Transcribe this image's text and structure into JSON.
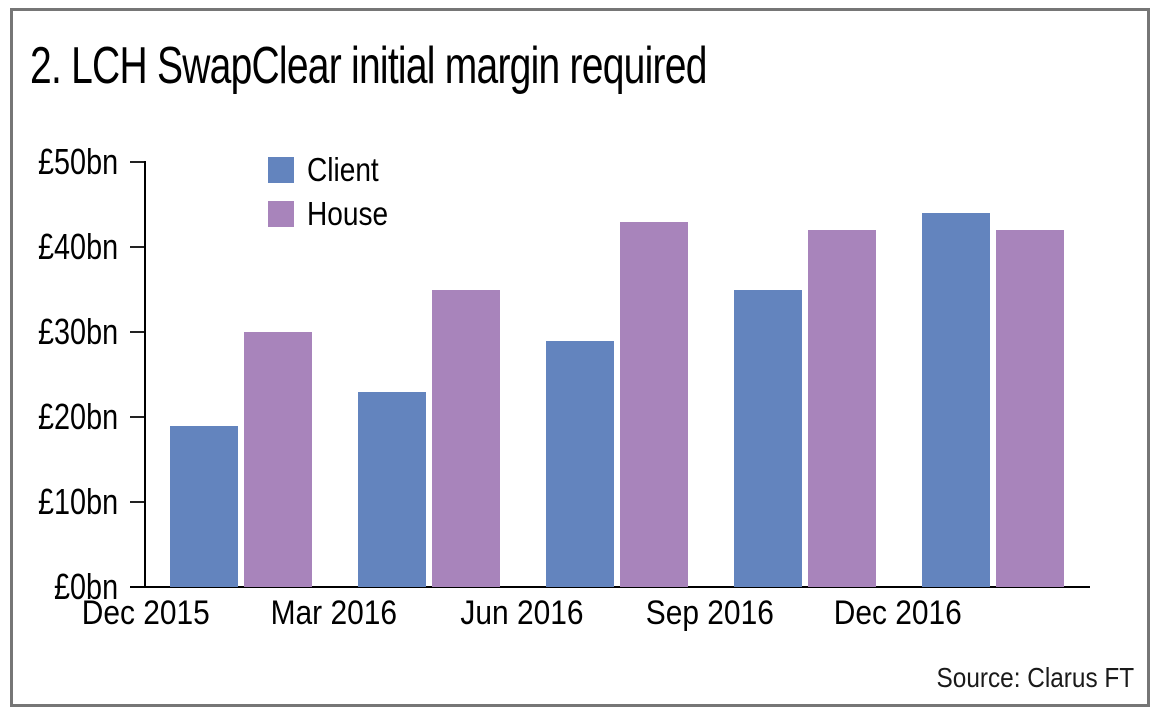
{
  "chart_data": {
    "type": "bar",
    "title": "2. LCH SwapClear initial margin required",
    "categories": [
      "Dec 2015",
      "Mar 2016",
      "Jun 2016",
      "Sep 2016",
      "Dec 2016"
    ],
    "series": [
      {
        "name": "Client",
        "color": "#6384be",
        "values": [
          19,
          23,
          29,
          35,
          44
        ]
      },
      {
        "name": "House",
        "color": "#a884bb",
        "values": [
          30,
          35,
          43,
          42,
          42
        ]
      }
    ],
    "unit": "£bn",
    "ylim": [
      0,
      50
    ],
    "yticks": [
      0,
      10,
      20,
      30,
      40,
      50
    ],
    "ytick_labels": [
      "£0bn",
      "£10bn",
      "£20bn",
      "£30bn",
      "£40bn",
      "£50bn"
    ],
    "xlabel": "",
    "ylabel": "",
    "grid": false,
    "legend_position": "top-left-inside",
    "source": "Source: Clarus FT"
  },
  "colors": {
    "border": "#767676",
    "axis": "#000000",
    "text": "#000000"
  }
}
